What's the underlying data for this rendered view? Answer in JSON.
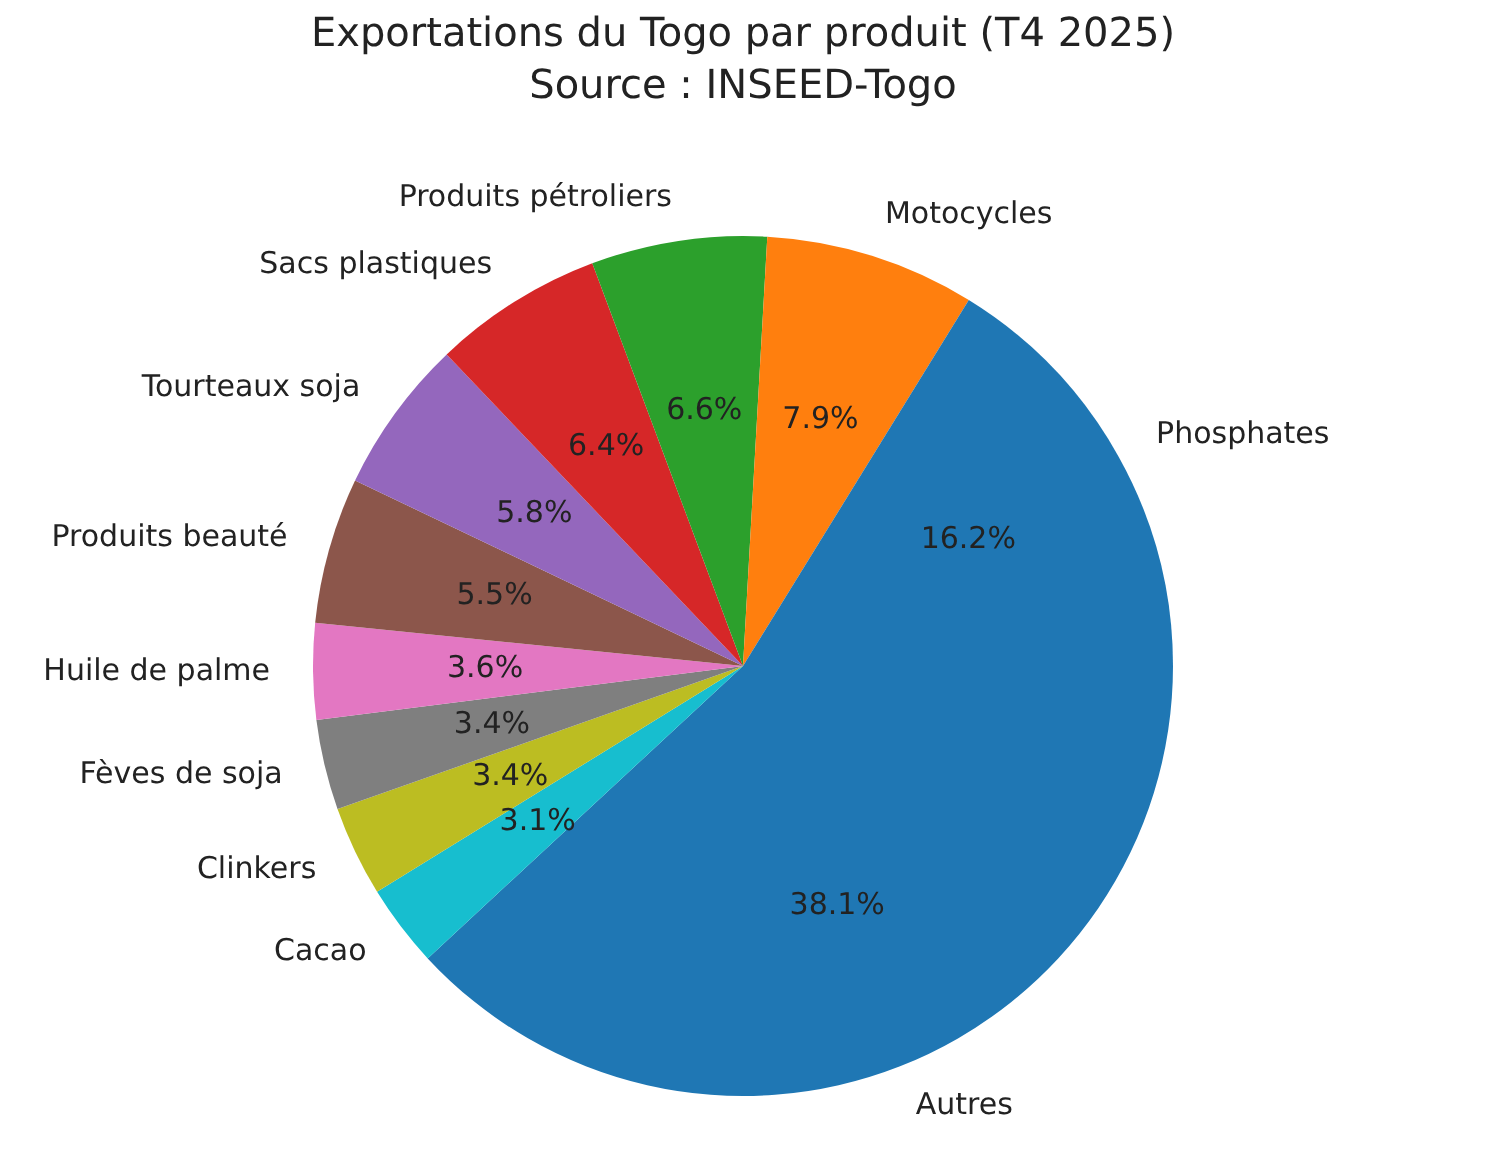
{
  "chart_data": {
    "type": "pie",
    "title": "Exportations du Togo par produit (T4 2025)",
    "subtitle": "Source : INSEED-Togo",
    "categories": [
      "Phosphates",
      "Motocycles",
      "Produits pétroliers",
      "Sacs plastiques",
      "Tourteaux soja",
      "Produits beauté",
      "Huile de palme",
      "Fèves de soja",
      "Clinkers",
      "Cacao",
      "Autres"
    ],
    "values": [
      16.2,
      7.9,
      6.6,
      6.4,
      5.8,
      5.5,
      3.6,
      3.4,
      3.4,
      3.1,
      38.1
    ],
    "value_labels": [
      "16.2%",
      "7.9%",
      "6.6%",
      "6.4%",
      "5.8%",
      "5.5%",
      "3.6%",
      "3.4%",
      "3.4%",
      "3.1%",
      "38.1%"
    ],
    "colors": [
      "#1f77b4",
      "#ff7f0e",
      "#2ca02c",
      "#d62728",
      "#9467bd",
      "#8c564b",
      "#e377c2",
      "#7f7f7f",
      "#bcbd22",
      "#17becf",
      "#1f77b4"
    ],
    "legend": false
  }
}
